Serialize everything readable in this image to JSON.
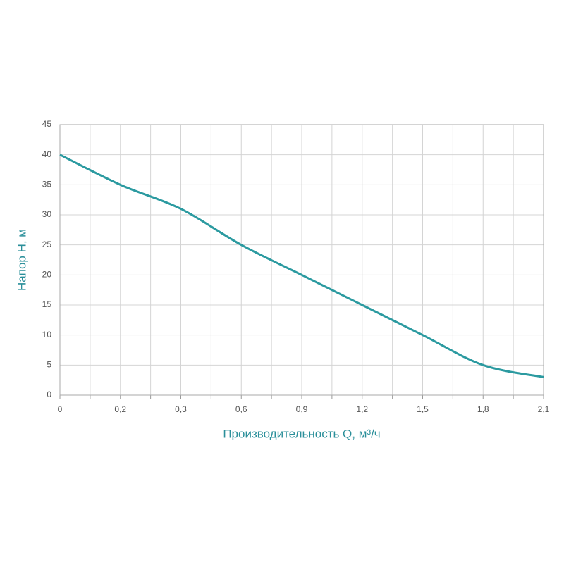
{
  "chart_data": {
    "type": "line",
    "x_label": "Производительность Q, м³/ч",
    "y_label": "Напор H, м",
    "categories": [
      "0",
      "0,2",
      "0,3",
      "0,6",
      "0,9",
      "1,2",
      "1,5",
      "1,8",
      "2,1"
    ],
    "series": [
      {
        "color": "#2b9aa0",
        "values": [
          40,
          35,
          31,
          25,
          20,
          15,
          10,
          5,
          3
        ]
      }
    ],
    "ylim": [
      0,
      45
    ],
    "yticks": [
      0,
      5,
      10,
      15,
      20,
      25,
      30,
      35,
      40,
      45
    ],
    "grid": true
  }
}
